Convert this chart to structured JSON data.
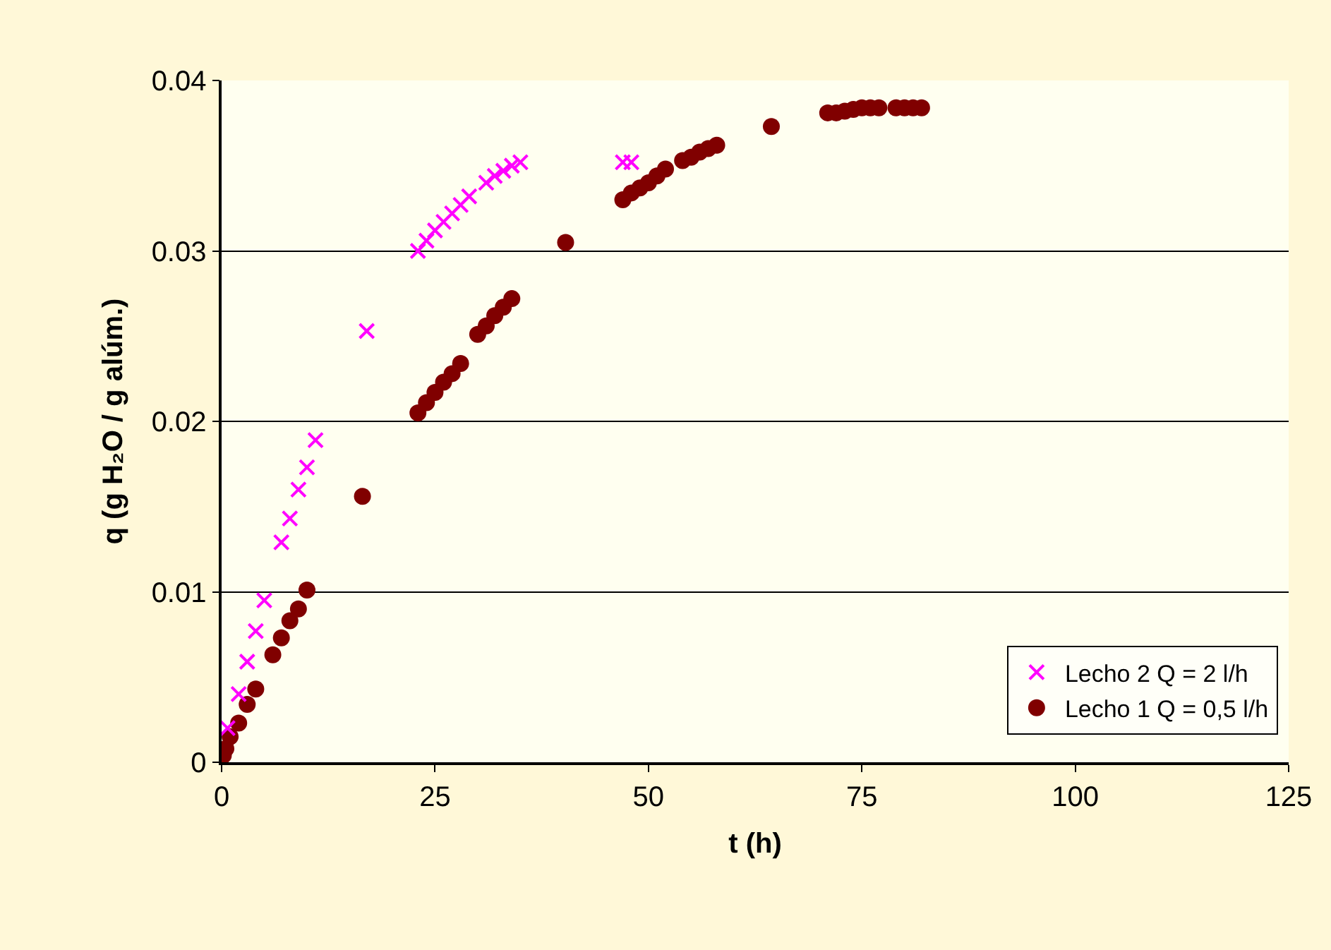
{
  "chart_data": {
    "type": "scatter",
    "xlabel": "t (h)",
    "ylabel": "q (g H₂O / g alúm.)",
    "xlim": [
      0,
      125
    ],
    "xticks": [
      0,
      25,
      50,
      75,
      100,
      125
    ],
    "ylim": [
      0,
      0.04
    ],
    "yticks": [
      {
        "value": 0,
        "label": "0"
      },
      0.01,
      0.02,
      0.03,
      0.04
    ],
    "grid": "y",
    "legend": "bottom right",
    "series": [
      {
        "name": "Lecho 2 Q = 2 l/h",
        "color": "#ff00ff",
        "marker": "cross",
        "x": [
          0.7,
          2,
          3,
          4,
          5,
          7,
          8,
          9,
          10,
          11,
          17,
          23,
          24,
          25,
          26,
          27,
          28,
          29,
          31,
          32,
          33,
          34,
          35,
          47,
          48
        ],
        "values": [
          0.002,
          0.004,
          0.0059,
          0.0077,
          0.0095,
          0.0129,
          0.0143,
          0.016,
          0.0173,
          0.0189,
          0.0253,
          0.03,
          0.0306,
          0.0312,
          0.0317,
          0.0322,
          0.0327,
          0.0332,
          0.034,
          0.0344,
          0.0347,
          0.035,
          0.0352,
          0.0352,
          0.0352
        ]
      },
      {
        "name": "Lecho 1 Q = 0,5 l/h",
        "color": "#800000",
        "marker": "circle",
        "x": [
          0.2,
          0.5,
          1,
          2,
          3,
          4,
          6,
          7,
          8,
          9,
          10,
          16.5,
          23,
          24,
          25,
          26,
          27,
          28,
          30,
          31,
          32,
          33,
          34,
          40.3,
          47,
          48,
          49,
          50,
          51,
          52,
          54,
          55,
          56,
          57,
          58,
          64.4,
          71,
          72,
          73,
          74,
          75,
          76,
          77,
          79,
          80,
          81,
          82
        ],
        "values": [
          0.0004,
          0.0008,
          0.0015,
          0.0023,
          0.0034,
          0.0043,
          0.0063,
          0.0073,
          0.0083,
          0.009,
          0.0101,
          0.0156,
          0.0205,
          0.0211,
          0.0217,
          0.0223,
          0.0228,
          0.0234,
          0.0251,
          0.0256,
          0.0262,
          0.0267,
          0.0272,
          0.0305,
          0.033,
          0.0334,
          0.0337,
          0.034,
          0.0344,
          0.0348,
          0.0353,
          0.0355,
          0.0358,
          0.036,
          0.0362,
          0.0373,
          0.0381,
          0.0381,
          0.0382,
          0.0383,
          0.0384,
          0.0384,
          0.0384,
          0.0384,
          0.0384,
          0.0384,
          0.0384
        ]
      }
    ]
  }
}
